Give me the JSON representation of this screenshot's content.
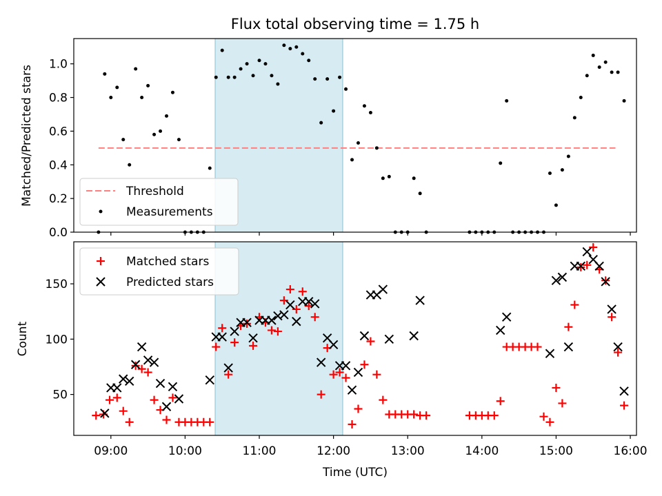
{
  "title": "Flux total observing time = 1.75 h",
  "xlabel": "Time (UTC)",
  "xticks": [
    {
      "t": 9,
      "label": "09:00"
    },
    {
      "t": 10,
      "label": "10:00"
    },
    {
      "t": 11,
      "label": "11:00"
    },
    {
      "t": 12,
      "label": "12:00"
    },
    {
      "t": 13,
      "label": "13:00"
    },
    {
      "t": 14,
      "label": "14:00"
    },
    {
      "t": 15,
      "label": "15:00"
    },
    {
      "t": 16,
      "label": "16:00"
    }
  ],
  "colors": {
    "threshold": "#ff7f7f",
    "measurements": "#000000",
    "matched": "#ff0000",
    "predicted": "#000000",
    "span": "#add8e6"
  },
  "chart_data": [
    {
      "type": "scatter",
      "ylabel": "Matched/Predicted stars",
      "xlim": [
        "08:30",
        "16:05"
      ],
      "ylim": [
        0,
        1.15
      ],
      "yticks": [
        "0.0",
        "0.2",
        "0.4",
        "0.6",
        "0.8",
        "1.0"
      ],
      "legend_position": "lower-left",
      "shaded_span": [
        "10:24",
        "12:09"
      ],
      "threshold": {
        "name": "Threshold",
        "value": 0.5,
        "x_range": [
          "08:50",
          "15:48"
        ]
      },
      "series": [
        {
          "name": "Measurements",
          "points": [
            [
              "08:50",
              0.0
            ],
            [
              "08:55",
              0.94
            ],
            [
              "09:00",
              0.8
            ],
            [
              "09:05",
              0.86
            ],
            [
              "09:10",
              0.55
            ],
            [
              "09:15",
              0.4
            ],
            [
              "09:20",
              0.97
            ],
            [
              "09:25",
              0.8
            ],
            [
              "09:30",
              0.87
            ],
            [
              "09:35",
              0.58
            ],
            [
              "09:40",
              0.6
            ],
            [
              "09:45",
              0.69
            ],
            [
              "09:50",
              0.83
            ],
            [
              "09:55",
              0.55
            ],
            [
              "10:00",
              0.0
            ],
            [
              "10:05",
              0.0
            ],
            [
              "10:10",
              0.0
            ],
            [
              "10:15",
              0.0
            ],
            [
              "10:20",
              0.38
            ],
            [
              "10:25",
              0.92
            ],
            [
              "10:30",
              1.08
            ],
            [
              "10:35",
              0.92
            ],
            [
              "10:40",
              0.92
            ],
            [
              "10:45",
              0.97
            ],
            [
              "10:50",
              1.0
            ],
            [
              "10:55",
              0.93
            ],
            [
              "11:00",
              1.02
            ],
            [
              "11:05",
              1.0
            ],
            [
              "11:10",
              0.93
            ],
            [
              "11:15",
              0.88
            ],
            [
              "11:20",
              1.11
            ],
            [
              "11:25",
              1.09
            ],
            [
              "11:30",
              1.1
            ],
            [
              "11:35",
              1.06
            ],
            [
              "11:40",
              1.02
            ],
            [
              "11:45",
              0.91
            ],
            [
              "11:50",
              0.65
            ],
            [
              "11:55",
              0.91
            ],
            [
              "12:00",
              0.72
            ],
            [
              "12:05",
              0.92
            ],
            [
              "12:10",
              0.85
            ],
            [
              "12:15",
              0.43
            ],
            [
              "12:20",
              0.53
            ],
            [
              "12:25",
              0.75
            ],
            [
              "12:30",
              0.71
            ],
            [
              "12:35",
              0.5
            ],
            [
              "12:40",
              0.32
            ],
            [
              "12:45",
              0.33
            ],
            [
              "12:50",
              0.0
            ],
            [
              "12:55",
              0.0
            ],
            [
              "13:00",
              0.0
            ],
            [
              "13:05",
              0.32
            ],
            [
              "13:10",
              0.23
            ],
            [
              "13:15",
              0.0
            ],
            [
              "13:50",
              0.0
            ],
            [
              "13:55",
              0.0
            ],
            [
              "14:00",
              0.0
            ],
            [
              "14:05",
              0.0
            ],
            [
              "14:10",
              0.0
            ],
            [
              "14:15",
              0.41
            ],
            [
              "14:20",
              0.78
            ],
            [
              "14:25",
              0.0
            ],
            [
              "14:30",
              0.0
            ],
            [
              "14:35",
              0.0
            ],
            [
              "14:40",
              0.0
            ],
            [
              "14:45",
              0.0
            ],
            [
              "14:50",
              0.0
            ],
            [
              "14:55",
              0.35
            ],
            [
              "15:00",
              0.16
            ],
            [
              "15:05",
              0.37
            ],
            [
              "15:10",
              0.45
            ],
            [
              "15:15",
              0.68
            ],
            [
              "15:20",
              0.8
            ],
            [
              "15:25",
              0.93
            ],
            [
              "15:30",
              1.05
            ],
            [
              "15:35",
              0.98
            ],
            [
              "15:40",
              1.01
            ],
            [
              "15:45",
              0.95
            ],
            [
              "15:50",
              0.95
            ],
            [
              "15:55",
              0.78
            ]
          ]
        }
      ]
    },
    {
      "type": "scatter",
      "ylabel": "Count",
      "xlim": [
        "08:30",
        "16:05"
      ],
      "ylim": [
        13,
        188
      ],
      "yticks": [
        "50",
        "100",
        "150"
      ],
      "legend_position": "upper-left",
      "shaded_span": [
        "10:24",
        "12:09"
      ],
      "series": [
        {
          "name": "Matched stars",
          "marker": "plus",
          "points": [
            [
              "08:48",
              31
            ],
            [
              "08:54",
              32
            ],
            [
              "08:59",
              45
            ],
            [
              "09:05",
              47
            ],
            [
              "09:10",
              35
            ],
            [
              "09:15",
              25
            ],
            [
              "09:20",
              76
            ],
            [
              "09:25",
              73
            ],
            [
              "09:30",
              70
            ],
            [
              "09:35",
              45
            ],
            [
              "09:40",
              36
            ],
            [
              "09:45",
              27
            ],
            [
              "09:50",
              47
            ],
            [
              "09:55",
              25
            ],
            [
              "10:00",
              25
            ],
            [
              "10:05",
              25
            ],
            [
              "10:10",
              25
            ],
            [
              "10:15",
              25
            ],
            [
              "10:20",
              25
            ],
            [
              "10:25",
              93
            ],
            [
              "10:30",
              110
            ],
            [
              "10:35",
              68
            ],
            [
              "10:40",
              97
            ],
            [
              "10:45",
              112
            ],
            [
              "10:50",
              114
            ],
            [
              "10:55",
              94
            ],
            [
              "11:00",
              120
            ],
            [
              "11:05",
              115
            ],
            [
              "11:10",
              108
            ],
            [
              "11:15",
              107
            ],
            [
              "11:20",
              135
            ],
            [
              "11:25",
              145
            ],
            [
              "11:30",
              127
            ],
            [
              "11:35",
              143
            ],
            [
              "11:40",
              130
            ],
            [
              "11:45",
              120
            ],
            [
              "11:50",
              50
            ],
            [
              "11:55",
              92
            ],
            [
              "12:00",
              68
            ],
            [
              "12:05",
              70
            ],
            [
              "12:10",
              65
            ],
            [
              "12:15",
              23
            ],
            [
              "12:20",
              37
            ],
            [
              "12:25",
              77
            ],
            [
              "12:30",
              98
            ],
            [
              "12:35",
              68
            ],
            [
              "12:40",
              45
            ],
            [
              "12:45",
              32
            ],
            [
              "12:50",
              32
            ],
            [
              "12:55",
              32
            ],
            [
              "13:00",
              32
            ],
            [
              "13:05",
              32
            ],
            [
              "13:10",
              31
            ],
            [
              "13:15",
              31
            ],
            [
              "13:50",
              31
            ],
            [
              "13:55",
              31
            ],
            [
              "14:00",
              31
            ],
            [
              "14:05",
              31
            ],
            [
              "14:10",
              31
            ],
            [
              "14:15",
              44
            ],
            [
              "14:20",
              93
            ],
            [
              "14:25",
              93
            ],
            [
              "14:30",
              93
            ],
            [
              "14:35",
              93
            ],
            [
              "14:40",
              93
            ],
            [
              "14:45",
              93
            ],
            [
              "14:50",
              30
            ],
            [
              "14:55",
              25
            ],
            [
              "15:00",
              56
            ],
            [
              "15:05",
              42
            ],
            [
              "15:10",
              111
            ],
            [
              "15:15",
              131
            ],
            [
              "15:20",
              165
            ],
            [
              "15:25",
              167
            ],
            [
              "15:30",
              183
            ],
            [
              "15:35",
              163
            ],
            [
              "15:40",
              153
            ],
            [
              "15:45",
              120
            ],
            [
              "15:50",
              88
            ],
            [
              "15:55",
              40
            ]
          ]
        },
        {
          "name": "Predicted stars",
          "marker": "x",
          "points": [
            [
              "08:55",
              33
            ],
            [
              "09:00",
              56
            ],
            [
              "09:05",
              56
            ],
            [
              "09:10",
              64
            ],
            [
              "09:15",
              62
            ],
            [
              "09:20",
              77
            ],
            [
              "09:25",
              93
            ],
            [
              "09:30",
              81
            ],
            [
              "09:35",
              79
            ],
            [
              "09:40",
              60
            ],
            [
              "09:45",
              39
            ],
            [
              "09:50",
              57
            ],
            [
              "09:55",
              46
            ],
            [
              "10:20",
              63
            ],
            [
              "10:25",
              102
            ],
            [
              "10:30",
              102
            ],
            [
              "10:35",
              74
            ],
            [
              "10:40",
              107
            ],
            [
              "10:45",
              115
            ],
            [
              "10:50",
              115
            ],
            [
              "10:55",
              101
            ],
            [
              "11:00",
              117
            ],
            [
              "11:05",
              117
            ],
            [
              "11:10",
              117
            ],
            [
              "11:15",
              121
            ],
            [
              "11:20",
              122
            ],
            [
              "11:25",
              131
            ],
            [
              "11:30",
              116
            ],
            [
              "11:35",
              134
            ],
            [
              "11:40",
              134
            ],
            [
              "11:45",
              132
            ],
            [
              "11:50",
              79
            ],
            [
              "11:55",
              101
            ],
            [
              "12:00",
              95
            ],
            [
              "12:05",
              76
            ],
            [
              "12:10",
              76
            ],
            [
              "12:15",
              54
            ],
            [
              "12:20",
              70
            ],
            [
              "12:25",
              103
            ],
            [
              "12:30",
              140
            ],
            [
              "12:35",
              140
            ],
            [
              "12:40",
              145
            ],
            [
              "12:45",
              100
            ],
            [
              "13:05",
              103
            ],
            [
              "13:10",
              135
            ],
            [
              "14:15",
              108
            ],
            [
              "14:20",
              120
            ],
            [
              "14:55",
              87
            ],
            [
              "15:00",
              153
            ],
            [
              "15:05",
              156
            ],
            [
              "15:10",
              93
            ],
            [
              "15:15",
              166
            ],
            [
              "15:20",
              166
            ],
            [
              "15:25",
              179
            ],
            [
              "15:30",
              172
            ],
            [
              "15:35",
              166
            ],
            [
              "15:40",
              152
            ],
            [
              "15:45",
              127
            ],
            [
              "15:50",
              93
            ],
            [
              "15:55",
              53
            ]
          ]
        }
      ]
    }
  ]
}
